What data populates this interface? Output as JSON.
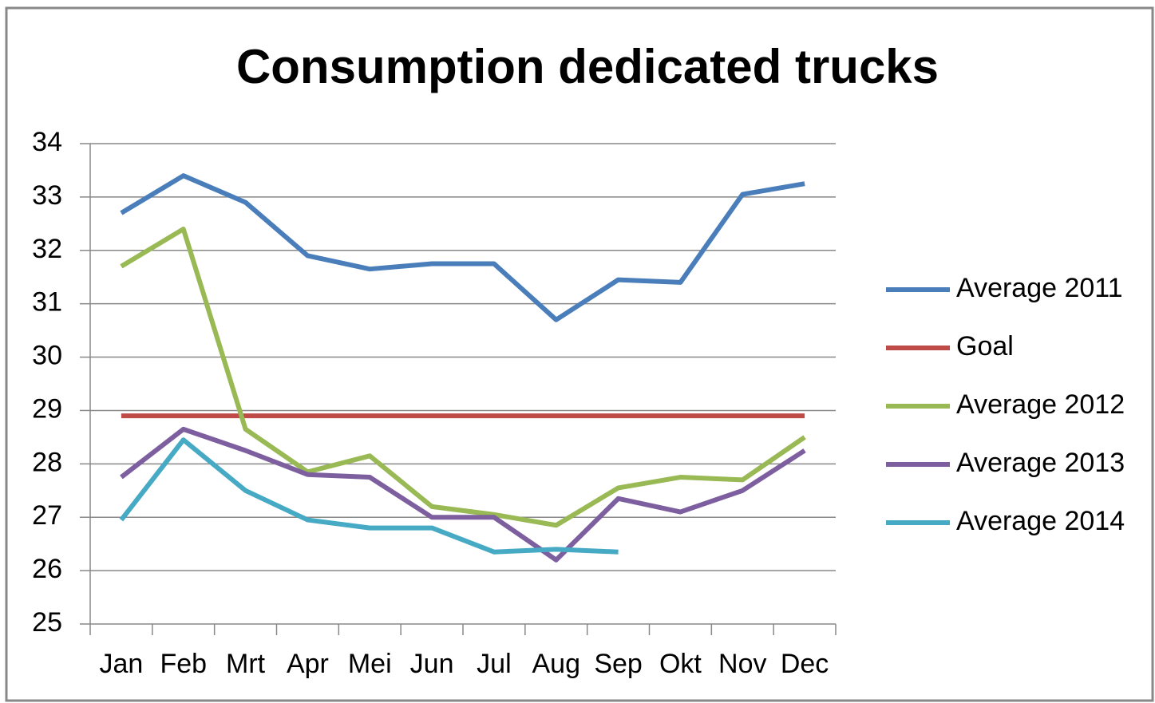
{
  "chart_data": {
    "type": "line",
    "title": "Consumption dedicated trucks",
    "categories": [
      "Jan",
      "Feb",
      "Mrt",
      "Apr",
      "Mei",
      "Jun",
      "Jul",
      "Aug",
      "Sep",
      "Okt",
      "Nov",
      "Dec"
    ],
    "series": [
      {
        "name": "Average 2011",
        "color": "#4a7ebb",
        "values": [
          32.7,
          33.4,
          32.9,
          31.9,
          31.65,
          31.75,
          31.75,
          30.7,
          31.45,
          31.4,
          33.05,
          33.25
        ]
      },
      {
        "name": "Goal",
        "color": "#be4b48",
        "values": [
          28.9,
          28.9,
          28.9,
          28.9,
          28.9,
          28.9,
          28.9,
          28.9,
          28.9,
          28.9,
          28.9,
          28.9
        ]
      },
      {
        "name": "Average 2012",
        "color": "#98b954",
        "values": [
          31.7,
          32.4,
          28.65,
          27.85,
          28.15,
          27.2,
          27.05,
          26.85,
          27.55,
          27.75,
          27.7,
          28.5
        ]
      },
      {
        "name": "Average 2013",
        "color": "#7d5fa0",
        "values": [
          27.75,
          28.65,
          28.25,
          27.8,
          27.75,
          27.0,
          27.0,
          26.2,
          27.35,
          27.1,
          27.5,
          28.25
        ]
      },
      {
        "name": "Average 2014",
        "color": "#46aac5",
        "values": [
          26.95,
          28.45,
          27.5,
          26.95,
          26.8,
          26.8,
          26.35,
          26.4,
          26.35,
          null,
          null,
          null
        ]
      }
    ],
    "ylim": [
      25,
      34
    ],
    "yticks": [
      25,
      26,
      27,
      28,
      29,
      30,
      31,
      32,
      33,
      34
    ],
    "grid": true,
    "legend": "right"
  }
}
